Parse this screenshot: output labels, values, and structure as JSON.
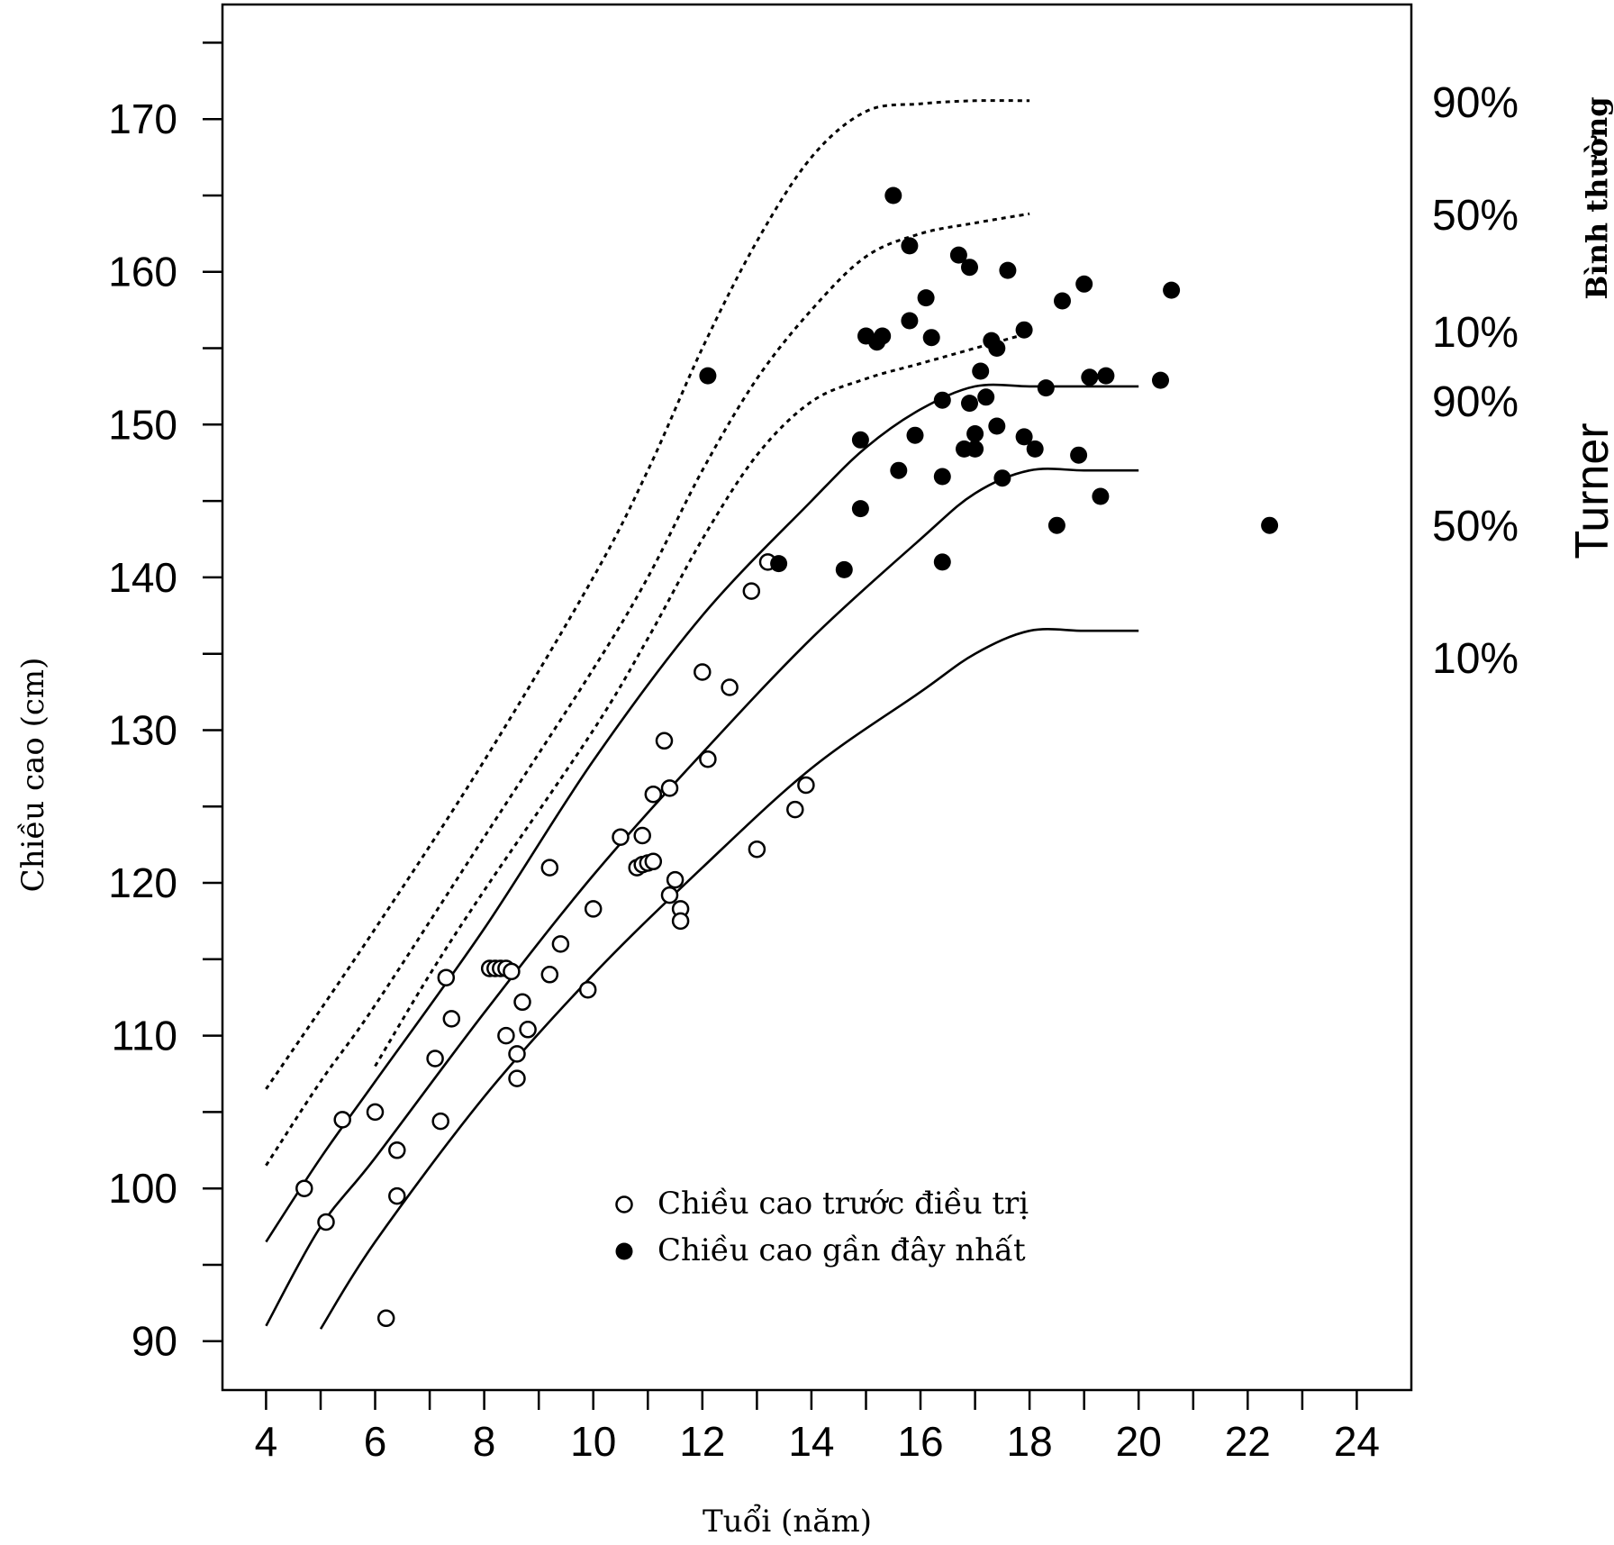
{
  "chart_data": {
    "type": "scatter",
    "xlabel": "Tuổi (năm)",
    "ylabel": "Chiều cao (cm)",
    "xlim": [
      3.2,
      25
    ],
    "ylim": [
      86.8,
      177.5
    ],
    "xticks": [
      4,
      6,
      8,
      10,
      12,
      14,
      16,
      18,
      20,
      22,
      24
    ],
    "xtick_minor_step": 1,
    "yticks": [
      90,
      100,
      110,
      120,
      130,
      140,
      150,
      160,
      170
    ],
    "ytick_minor_step": 5,
    "legend": {
      "placement": "bottom-center",
      "entries": [
        {
          "marker": "open-circle",
          "label": "Chiều cao trước điều trị"
        },
        {
          "marker": "filled-circle",
          "label": "Chiều cao gần đây nhất"
        }
      ]
    },
    "groups": [
      {
        "label": "Bình thường",
        "style": "dotted"
      },
      {
        "label": "Turner",
        "style": "solid"
      }
    ],
    "percentile_curves": [
      {
        "group": "Bình thường",
        "label": "90%",
        "style": "dotted",
        "points": [
          [
            4,
            106.5
          ],
          [
            6,
            117
          ],
          [
            8,
            128
          ],
          [
            10,
            140
          ],
          [
            11,
            147
          ],
          [
            12,
            155
          ],
          [
            13,
            162
          ],
          [
            14,
            167.5
          ],
          [
            15,
            170.5
          ],
          [
            16,
            171
          ],
          [
            17,
            171.2
          ],
          [
            18,
            171.2
          ]
        ]
      },
      {
        "group": "Bình thường",
        "label": "50%",
        "style": "dotted",
        "points": [
          [
            4,
            101.5
          ],
          [
            5,
            107
          ],
          [
            6,
            112
          ],
          [
            8,
            123
          ],
          [
            10,
            134
          ],
          [
            11,
            140
          ],
          [
            12,
            147
          ],
          [
            13,
            153
          ],
          [
            14,
            157.5
          ],
          [
            15,
            161
          ],
          [
            16,
            162.5
          ],
          [
            17,
            163.2
          ],
          [
            18,
            163.8
          ]
        ]
      },
      {
        "group": "Bình thường",
        "label": "10%",
        "style": "dotted",
        "points": [
          [
            6,
            108
          ],
          [
            7,
            114
          ],
          [
            8,
            119.5
          ],
          [
            10,
            130
          ],
          [
            11,
            136
          ],
          [
            12,
            142.5
          ],
          [
            13,
            148
          ],
          [
            14,
            151.5
          ],
          [
            15,
            153
          ],
          [
            16,
            154
          ],
          [
            17,
            155
          ],
          [
            18,
            156
          ]
        ]
      },
      {
        "group": "Turner",
        "label": "90%",
        "style": "solid",
        "points": [
          [
            4,
            96.5
          ],
          [
            5,
            102
          ],
          [
            6,
            107
          ],
          [
            8,
            117
          ],
          [
            10,
            128
          ],
          [
            12,
            137.5
          ],
          [
            14,
            145
          ],
          [
            15,
            148.5
          ],
          [
            16,
            151
          ],
          [
            17,
            152.5
          ],
          [
            18,
            152.5
          ],
          [
            19,
            152.5
          ],
          [
            20,
            152.5
          ]
        ]
      },
      {
        "group": "Turner",
        "label": "50%",
        "style": "solid",
        "points": [
          [
            4,
            91
          ],
          [
            5,
            97.5
          ],
          [
            6,
            102
          ],
          [
            8,
            111.5
          ],
          [
            10,
            120.5
          ],
          [
            12,
            128.5
          ],
          [
            14,
            136
          ],
          [
            16,
            142.5
          ],
          [
            17,
            145.5
          ],
          [
            18,
            147
          ],
          [
            19,
            147
          ],
          [
            20,
            147
          ]
        ]
      },
      {
        "group": "Turner",
        "label": "10%",
        "style": "solid",
        "points": [
          [
            5,
            90.8
          ],
          [
            6,
            96.5
          ],
          [
            8,
            106
          ],
          [
            10,
            114
          ],
          [
            12,
            121
          ],
          [
            14,
            127.5
          ],
          [
            16,
            132.5
          ],
          [
            17,
            135
          ],
          [
            18,
            136.5
          ],
          [
            19,
            136.5
          ],
          [
            20,
            136.5
          ]
        ]
      }
    ],
    "series": [
      {
        "name": "Chiều cao trước điều trị",
        "marker": "open",
        "points": [
          [
            4.7,
            100
          ],
          [
            5.1,
            97.8
          ],
          [
            5.4,
            104.5
          ],
          [
            6.0,
            105
          ],
          [
            6.2,
            91.5
          ],
          [
            6.4,
            102.5
          ],
          [
            6.4,
            99.5
          ],
          [
            7.1,
            108.5
          ],
          [
            7.2,
            104.4
          ],
          [
            7.3,
            113.8
          ],
          [
            7.4,
            111.1
          ],
          [
            8.1,
            114.4
          ],
          [
            8.2,
            114.4
          ],
          [
            8.3,
            114.4
          ],
          [
            8.4,
            114.4
          ],
          [
            8.5,
            114.2
          ],
          [
            8.4,
            110
          ],
          [
            8.6,
            108.8
          ],
          [
            8.6,
            107.2
          ],
          [
            8.7,
            112.2
          ],
          [
            8.8,
            110.4
          ],
          [
            9.2,
            121
          ],
          [
            9.2,
            114
          ],
          [
            9.4,
            116
          ],
          [
            9.9,
            113
          ],
          [
            10.0,
            118.3
          ],
          [
            10.5,
            123
          ],
          [
            10.8,
            121
          ],
          [
            10.9,
            121.2
          ],
          [
            11.0,
            121.3
          ],
          [
            10.9,
            123.1
          ],
          [
            11.1,
            121.4
          ],
          [
            11.1,
            125.8
          ],
          [
            11.3,
            129.3
          ],
          [
            11.4,
            126.2
          ],
          [
            11.4,
            119.2
          ],
          [
            11.5,
            120.2
          ],
          [
            11.6,
            118.3
          ],
          [
            11.6,
            117.5
          ],
          [
            12.0,
            133.8
          ],
          [
            12.1,
            128.1
          ],
          [
            12.5,
            132.8
          ],
          [
            12.9,
            139.1
          ],
          [
            13.0,
            122.2
          ],
          [
            13.2,
            141
          ],
          [
            13.7,
            124.8
          ],
          [
            13.9,
            126.4
          ]
        ]
      },
      {
        "name": "Chiều cao gần đây nhất",
        "marker": "filled",
        "points": [
          [
            12.1,
            153.2
          ],
          [
            13.4,
            140.9
          ],
          [
            14.6,
            140.5
          ],
          [
            14.9,
            149
          ],
          [
            14.9,
            144.5
          ],
          [
            15.0,
            155.8
          ],
          [
            15.2,
            155.4
          ],
          [
            15.3,
            155.8
          ],
          [
            15.5,
            165
          ],
          [
            15.6,
            147
          ],
          [
            15.8,
            161.7
          ],
          [
            15.8,
            156.8
          ],
          [
            15.9,
            149.3
          ],
          [
            16.1,
            158.3
          ],
          [
            16.2,
            155.7
          ],
          [
            16.4,
            151.6
          ],
          [
            16.4,
            146.6
          ],
          [
            16.4,
            141
          ],
          [
            16.7,
            161.1
          ],
          [
            16.8,
            148.4
          ],
          [
            16.9,
            160.3
          ],
          [
            16.9,
            151.4
          ],
          [
            17.0,
            149.4
          ],
          [
            17.0,
            148.4
          ],
          [
            17.1,
            153.5
          ],
          [
            17.2,
            151.8
          ],
          [
            17.3,
            155.5
          ],
          [
            17.4,
            155
          ],
          [
            17.4,
            149.9
          ],
          [
            17.5,
            146.5
          ],
          [
            17.6,
            160.1
          ],
          [
            17.9,
            156.2
          ],
          [
            17.9,
            149.2
          ],
          [
            18.1,
            148.4
          ],
          [
            18.3,
            152.4
          ],
          [
            18.5,
            143.4
          ],
          [
            18.6,
            158.1
          ],
          [
            18.9,
            148
          ],
          [
            19.0,
            159.2
          ],
          [
            19.1,
            153.1
          ],
          [
            19.3,
            145.3
          ],
          [
            19.4,
            153.2
          ],
          [
            20.4,
            152.9
          ],
          [
            20.6,
            158.8
          ],
          [
            22.4,
            143.4
          ]
        ]
      }
    ]
  }
}
